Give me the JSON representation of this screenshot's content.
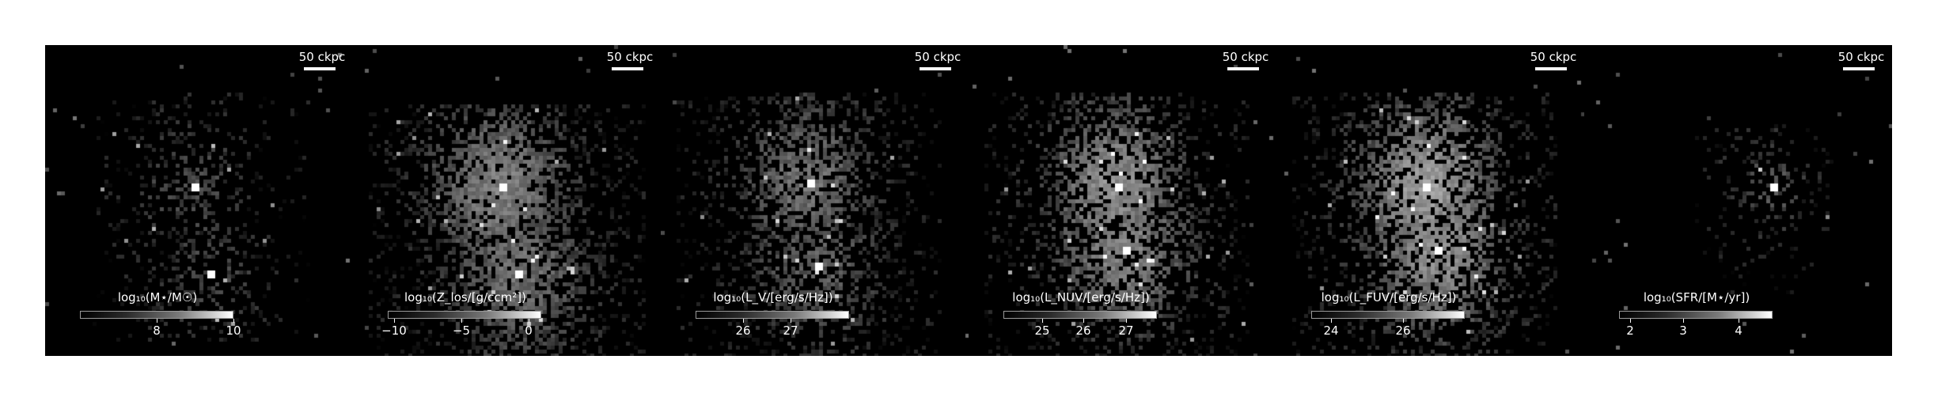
{
  "scale_bar_text": "50 ckpc",
  "panels": [
    {
      "id": "stellar-mass",
      "colorbar_label": "log₁₀(M⋆/M☉)",
      "ticks": [
        "8",
        "10"
      ],
      "tick_fraction": [
        0.5,
        1.0
      ]
    },
    {
      "id": "metallicity",
      "colorbar_label": "log₁₀(Z_los/[g/ccm²])",
      "ticks": [
        "−10",
        "−5",
        "0"
      ],
      "tick_fraction": [
        0.04,
        0.48,
        0.92
      ]
    },
    {
      "id": "v-band",
      "colorbar_label": "log₁₀(L_V/[erg/s/Hz])",
      "ticks": [
        "26",
        "27"
      ],
      "tick_fraction": [
        0.31,
        0.62
      ]
    },
    {
      "id": "nuv",
      "colorbar_label": "log₁₀(L_NUV/[erg/s/Hz])",
      "ticks": [
        "25",
        "26",
        "27"
      ],
      "tick_fraction": [
        0.25,
        0.52,
        0.8
      ]
    },
    {
      "id": "fuv",
      "colorbar_label": "log₁₀(L_FUV/[erg/s/Hz])",
      "ticks": [
        "24",
        "26"
      ],
      "tick_fraction": [
        0.13,
        0.6
      ]
    },
    {
      "id": "sfr",
      "colorbar_label": "log₁₀(SFR/[M⋆/yr])",
      "ticks": [
        "2",
        "3",
        "4"
      ],
      "tick_fraction": [
        0.07,
        0.42,
        0.78
      ]
    }
  ],
  "colors": {
    "background": "#000000",
    "text": "#ffffff",
    "figure": "#ffffff"
  }
}
